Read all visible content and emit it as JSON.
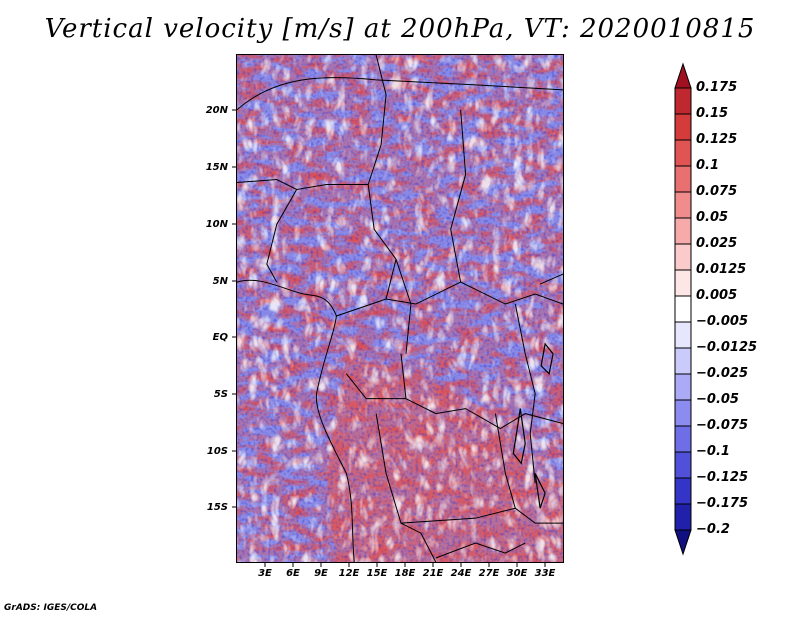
{
  "title": "Vertical velocity [m/s] at 200hPa, VT: 2020010815",
  "footer": "GrADS: IGES/COLA",
  "map": {
    "lat_labels": [
      "20N",
      "15N",
      "10N",
      "5N",
      "EQ",
      "5S",
      "10S",
      "15S"
    ],
    "lon_labels": [
      "3E",
      "6E",
      "9E",
      "12E",
      "15E",
      "18E",
      "21E",
      "24E",
      "27E",
      "30E",
      "33E"
    ],
    "lat_values": [
      20,
      15,
      10,
      5,
      0,
      -5,
      -10,
      -15
    ],
    "lon_values": [
      3,
      6,
      9,
      12,
      15,
      18,
      21,
      24,
      27,
      30,
      33
    ],
    "lat_range": [
      -20,
      24.5
    ],
    "lon_range": [
      0,
      34.5
    ]
  },
  "colorbar": {
    "labels": [
      "0.175",
      "0.15",
      "0.125",
      "0.1",
      "0.075",
      "0.05",
      "0.025",
      "0.0125",
      "0.005",
      "−0.005",
      "−0.0125",
      "−0.025",
      "−0.05",
      "−0.075",
      "−0.1",
      "−0.125",
      "−0.175",
      "−0.2"
    ],
    "colors": [
      "#a01020",
      "#c02830",
      "#d43c3c",
      "#e05454",
      "#e87070",
      "#f08c8c",
      "#f6aaaa",
      "#fbcaca",
      "#fde6e6",
      "#ffffff",
      "#e6e6fd",
      "#cacafb",
      "#aaaaf6",
      "#8c8cf0",
      "#6e6ee6",
      "#5050d8",
      "#3434c6",
      "#2020aa",
      "#101080"
    ]
  }
}
